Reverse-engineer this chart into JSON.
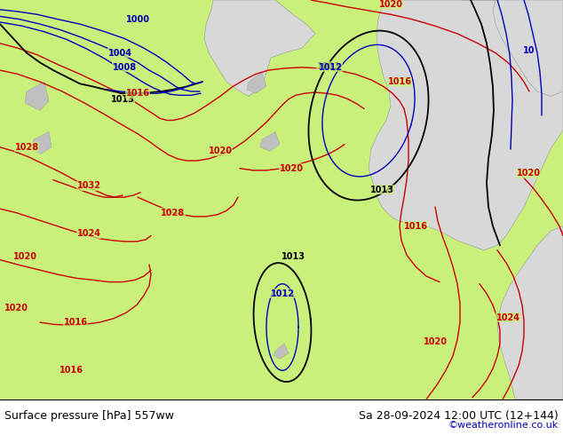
{
  "title_left": "Surface pressure [hPa] 557ww",
  "title_right": "Sa 28-09-2024 12:00 UTC (12+144)",
  "copyright": "©weatheronline.co.uk",
  "bg_land": "#c8f07a",
  "bg_sea": "#d8d8d8",
  "bg_inner_sea": "#c0c8c0",
  "color_red": "#cc0000",
  "color_blue": "#0000bb",
  "color_black": "#000000",
  "bottom_bg": "#ffffff",
  "figsize": [
    6.34,
    4.9
  ],
  "dpi": 100
}
